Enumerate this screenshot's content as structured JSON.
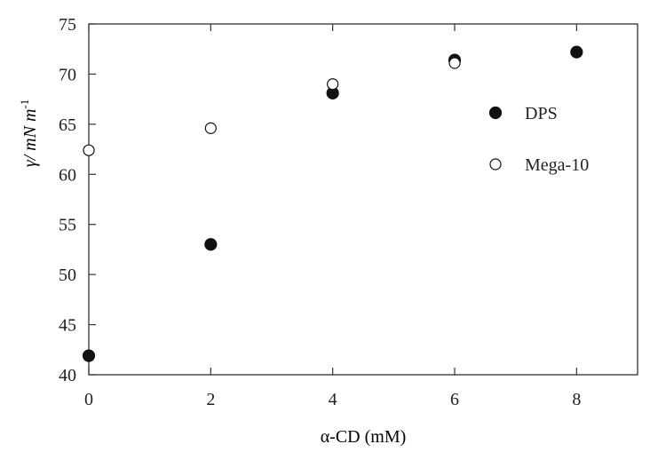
{
  "chart_data": {
    "type": "scatter",
    "title": "",
    "xlabel": "α-CD (mM)",
    "ylabel": "γ/ mN m",
    "ylabel_superscript": "-1",
    "xlim": [
      0,
      9
    ],
    "ylim": [
      40,
      75
    ],
    "xticks": [
      "0",
      "2",
      "4",
      "6",
      "8"
    ],
    "yticks": [
      "40",
      "45",
      "50",
      "55",
      "60",
      "65",
      "70",
      "75"
    ],
    "grid": false,
    "legend_placement": "right",
    "series": [
      {
        "name": "DPS",
        "marker": "filled-circle",
        "color": "#111111",
        "x": [
          0,
          2,
          4,
          6,
          8
        ],
        "y": [
          41.9,
          53.0,
          68.1,
          71.4,
          72.2
        ]
      },
      {
        "name": "Mega-10",
        "marker": "open-circle",
        "color": "#111111",
        "x": [
          0,
          2,
          4,
          6
        ],
        "y": [
          62.4,
          64.6,
          69.0,
          71.1
        ]
      }
    ]
  }
}
